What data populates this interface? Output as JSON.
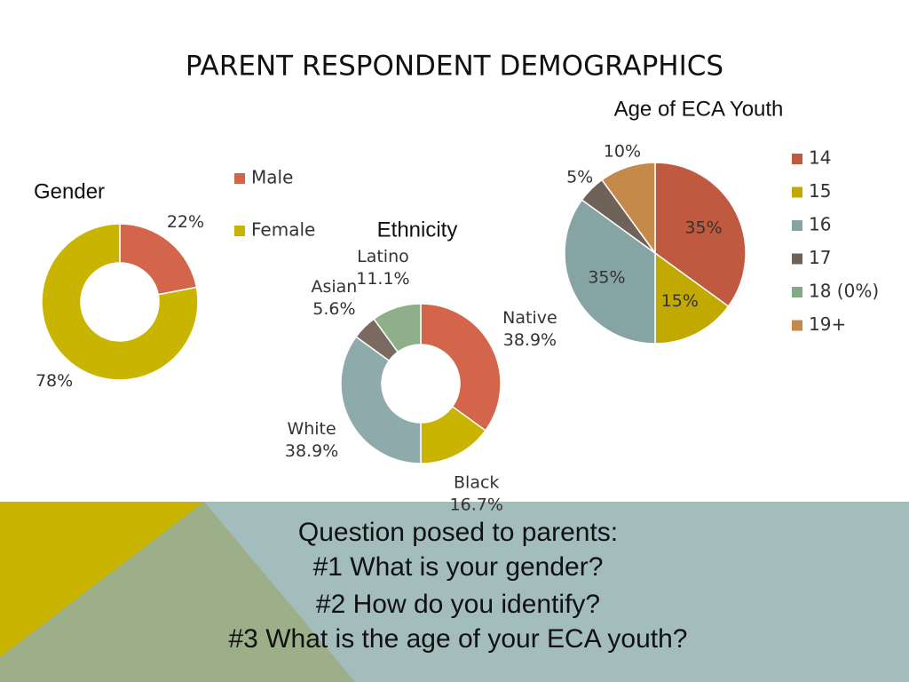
{
  "slide": {
    "title": "PARENT RESPONDENT DEMOGRAPHICS",
    "question": [
      "Question posed to parents:",
      "#1 What is your gender?",
      "#2 How do you identify?",
      "#3 What is the age of your ECA youth?"
    ]
  },
  "chart_data": [
    {
      "type": "donut",
      "title": "Gender",
      "categories": [
        "Male",
        "Female"
      ],
      "values": [
        22,
        78
      ],
      "value_labels": [
        "22%",
        "78%"
      ],
      "colors": [
        "#d3654b",
        "#c9b400"
      ],
      "legend": true
    },
    {
      "type": "donut",
      "title": "Ethnicity",
      "categories": [
        "Native",
        "Black",
        "White",
        "Asian",
        "Latino"
      ],
      "values": [
        38.9,
        16.7,
        38.9,
        5.6,
        11.1
      ],
      "value_labels": [
        "38.9%",
        "16.7%",
        "38.9%",
        "5.6%",
        "11.1%"
      ],
      "colors": [
        "#d3654b",
        "#c9b400",
        "#8faaaa",
        "#7a6a60",
        "#8fae8a"
      ],
      "legend": false
    },
    {
      "type": "pie",
      "title": "Age of ECA Youth",
      "categories": [
        "14",
        "15",
        "16",
        "17",
        "18 (0%)",
        "19+"
      ],
      "values": [
        35,
        15,
        35,
        5,
        0,
        10
      ],
      "value_labels": [
        "35%",
        "15%",
        "35%",
        "5%",
        null,
        "10%"
      ],
      "colors": [
        "#bf5a40",
        "#c2a900",
        "#86a4a4",
        "#6e6259",
        "#86a886",
        "#c58a4a"
      ],
      "legend": true
    }
  ]
}
